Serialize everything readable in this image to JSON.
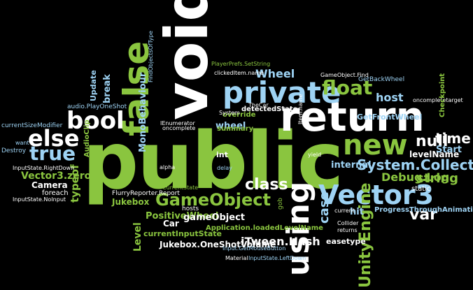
{
  "words": {
    "public": "public",
    "void": "void",
    "return": "return",
    "false": "false",
    "private": "private",
    "using": "using",
    "bool": "bool",
    "new": "new",
    "float": "float",
    "else": "else",
    "true": "true",
    "vector3": "Vector3",
    "gameobject": "GameObject",
    "unityengine": "UnityEngine",
    "system_collections": "System.Collections",
    "null": "null",
    "class": "class",
    "time": "time",
    "var": "var",
    "string": "string",
    "debug_log": "Debug.Log",
    "host": "host",
    "case": "case",
    "itween_hash": "iTween.Hash",
    "positive_wheel": "PositiveWheel",
    "jukebox_oneshotvolume": "Jukebox.OneShotVolume",
    "gameobject_lower": "gameObject",
    "monobehaviour": "MonoBehaviour",
    "wheel": "Wheel",
    "wheel2": "wheel",
    "typeof": "typeof",
    "level": "Level",
    "level_name": "levelName",
    "start": "Start",
    "vector3_zero": "Vector3.zero",
    "camera": "Camera",
    "break": "break",
    "update": "Update",
    "override": "override",
    "internal": "internal",
    "jukebox": "Jukebox",
    "current_input_state": "currentInputState",
    "application_loaded": "Application.loadedLevelName",
    "get_front_wheel": "GetFrontWheel",
    "get_back_wheel": "GetBackWheel",
    "detected_state": "detectedState",
    "audioclip": "AudioClip",
    "summary": "summary",
    "flurry": "FlurryReporter.Report",
    "progress_anim": "ProgressThroughAnimation",
    "hit": "hit",
    "static": "static",
    "easetype": "easetype",
    "int": "int",
    "car": "Car",
    "foreach": "foreach",
    "destroy": "Destroy",
    "current_size_modifier": "currentSizeModifier",
    "input_getmousebutton": "Input.GetMouseButton",
    "inputstate_leftdown": "InputState.LeftDown",
    "inputstate_nolnput": "InputState.NoInput",
    "inputstate_rightdown": "InputState.RightDown",
    "material": "Material",
    "hosts": "hosts",
    "audio_playoneshot": "audio.PlayOneShot",
    "clicked_item_name": "clickedItem.name",
    "playerprefs": "PlayerPrefs.SetString",
    "find_objects_of_type": "FindObjectsOfType",
    "gameobject_find": "GameObject.Find",
    "current_state": "CurrentState",
    "the_car": "TheCar",
    "system": "System",
    "oncomplete": "oncomplete",
    "oncomplete_target": "oncompletetarget",
    "checkpoint": "Checkpoint",
    "delay": "delay",
    "alpha": "alpha",
    "yield": "yield",
    "gob": "gob",
    "returns": "returns",
    "current": "current",
    "want": "want",
    "collider": "Collider",
    "ienumerator": "IEnumerator",
    "item_name": "Item.name"
  },
  "colors": {
    "background": "#000000",
    "green": "#8ac53f",
    "blue": "#9ed3f4",
    "white": "#ffffff"
  }
}
